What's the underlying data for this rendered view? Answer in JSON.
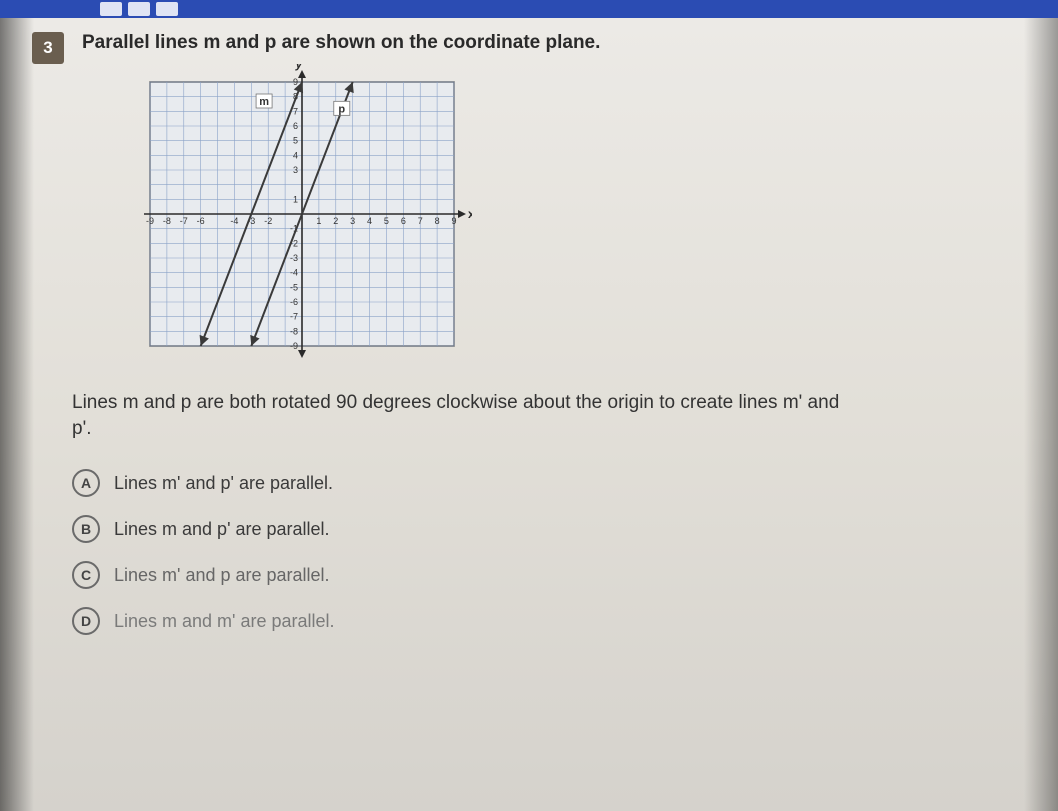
{
  "question": {
    "number": "3",
    "prompt": "Parallel lines m and p are shown on the coordinate plane.",
    "sub_prompt": "Lines m and p are both rotated 90 degrees clockwise about the origin to create lines m' and p'."
  },
  "graph": {
    "x_label": "x",
    "y_label": "y",
    "xlim": [
      -9,
      9
    ],
    "ylim": [
      -9,
      9
    ],
    "tick_step": 1,
    "grid_color": "#8aa2c8",
    "axis_color": "#2a2a2a",
    "background_color": "#e8ebef",
    "line_color": "#3a3a3a",
    "line_width": 2,
    "arrow_size": 5,
    "lines": {
      "m": {
        "slope": 3,
        "intercept": 9,
        "label": "m",
        "label_at": [
          -2.6,
          7.5
        ]
      },
      "p": {
        "slope": 3,
        "intercept": 0,
        "label": "p",
        "label_at": [
          2.0,
          7.0
        ]
      }
    },
    "x_ticks": [
      -9,
      -8,
      -7,
      -6,
      -4,
      -3,
      -2,
      1,
      2,
      3,
      4,
      5,
      6,
      7,
      8,
      9
    ],
    "y_ticks_pos": [
      1,
      3,
      4,
      5,
      6,
      7,
      8,
      9
    ],
    "y_ticks_neg": [
      -1,
      -2,
      -3,
      -4,
      -5,
      -6,
      -7,
      -8,
      -9
    ],
    "label_fontsize": 9,
    "label_box_bg": "#ffffff",
    "label_box_border": "#777777"
  },
  "choices": [
    {
      "letter": "A",
      "text": "Lines m' and p' are parallel."
    },
    {
      "letter": "B",
      "text": "Lines m and p' are parallel."
    },
    {
      "letter": "C",
      "text": "Lines m' and p are parallel."
    },
    {
      "letter": "D",
      "text": "Lines m and m' are parallel."
    }
  ],
  "style": {
    "top_bar_color": "#2b4cb3",
    "q_num_bg": "#6a5e4f",
    "body_bg": "#e2dfd8",
    "prompt_fontsize": 19,
    "choice_fontsize": 18,
    "choice_circle_border": "#6a6a6a"
  }
}
